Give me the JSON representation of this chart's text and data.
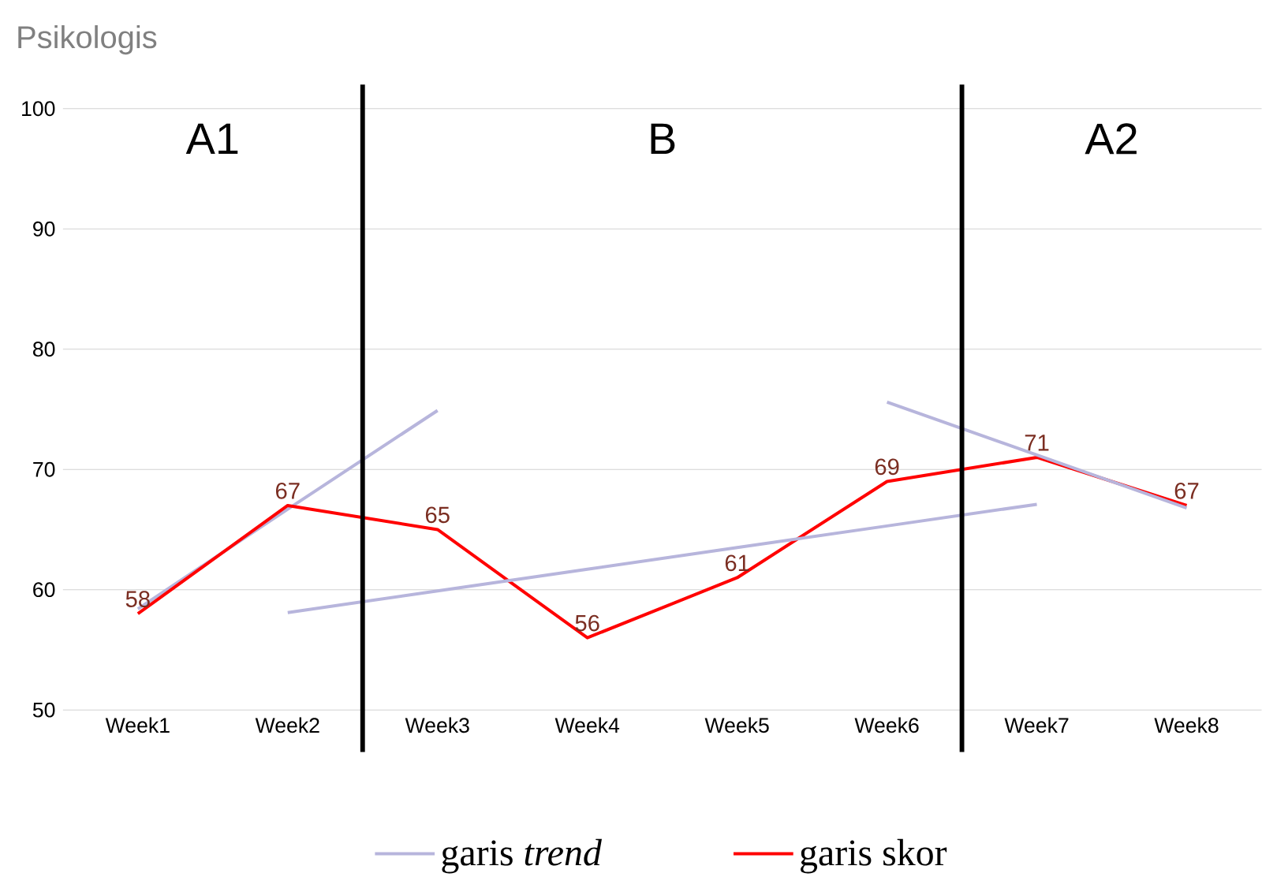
{
  "chart_data": {
    "type": "line",
    "title": "Psikologis",
    "categories": [
      "Week1",
      "Week2",
      "Week3",
      "Week4",
      "Week5",
      "Week6",
      "Week7",
      "Week8"
    ],
    "series": [
      {
        "name": "garis *trend*",
        "color": "#b7b5dc",
        "values": [
          58.4,
          66.7,
          74.9,
          null,
          null,
          null,
          null,
          null
        ]
      },
      {
        "name": "garis skor",
        "color": "#ff0000",
        "values": [
          58,
          67,
          65,
          56,
          61,
          69,
          71,
          67
        ],
        "value_labels": [
          "58",
          "67",
          "65",
          "56",
          "61",
          "69",
          "71",
          "67"
        ]
      },
      {
        "color": "#b7b5dc",
        "values": [
          null,
          58.1,
          59.9,
          61.7,
          63.5,
          65.3,
          67.1,
          null
        ]
      },
      {
        "color": "#b7b5dc",
        "values": [
          null,
          null,
          null,
          null,
          null,
          75.6,
          71.2,
          66.8
        ]
      }
    ],
    "ylim": [
      50,
      100
    ],
    "yticks": [
      50,
      60,
      70,
      80,
      90,
      100
    ],
    "grid": "y",
    "legend": "bottom",
    "marker": "none",
    "line_style": "solid",
    "annotations": [
      "A1",
      "B",
      "A2"
    ]
  }
}
